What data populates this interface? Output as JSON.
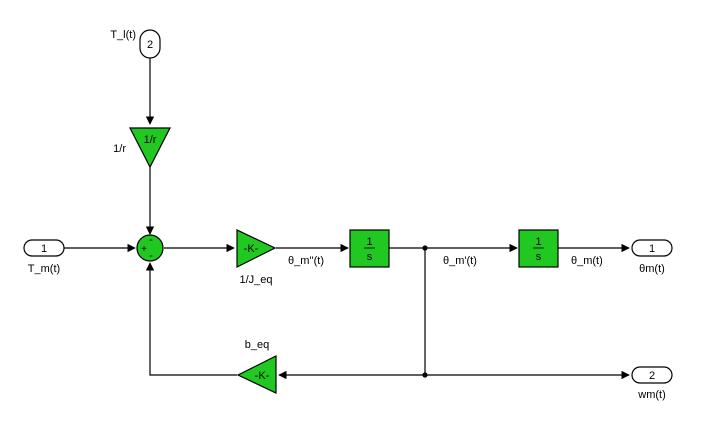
{
  "colors": {
    "block_fill": "#22c822",
    "wire": "#000000",
    "background": "#ffffff"
  },
  "ports": {
    "in_tl": {
      "number": "2",
      "label": "T_l(t)"
    },
    "in_tm": {
      "number": "1",
      "label": "T_m(t)"
    },
    "out_theta": {
      "number": "1",
      "label": "θm(t)"
    },
    "out_wm": {
      "number": "2",
      "label": "wm(t)"
    }
  },
  "blocks": {
    "gain_r": {
      "text": "1/r",
      "label": "1/r"
    },
    "sum": {
      "sign_top": "-",
      "sign_left": "+",
      "sign_bottom": "-"
    },
    "gain_jeq": {
      "text": "-K-",
      "label": "1/J_eq"
    },
    "integrator1": {
      "numerator": "1",
      "denominator": "s"
    },
    "integrator2": {
      "numerator": "1",
      "denominator": "s"
    },
    "gain_beq": {
      "text": "-K-",
      "label": "b_eq"
    }
  },
  "signals": {
    "accel": "θ_m''(t)",
    "velocity": "θ_m'(t)",
    "position": "θ_m(t)"
  }
}
